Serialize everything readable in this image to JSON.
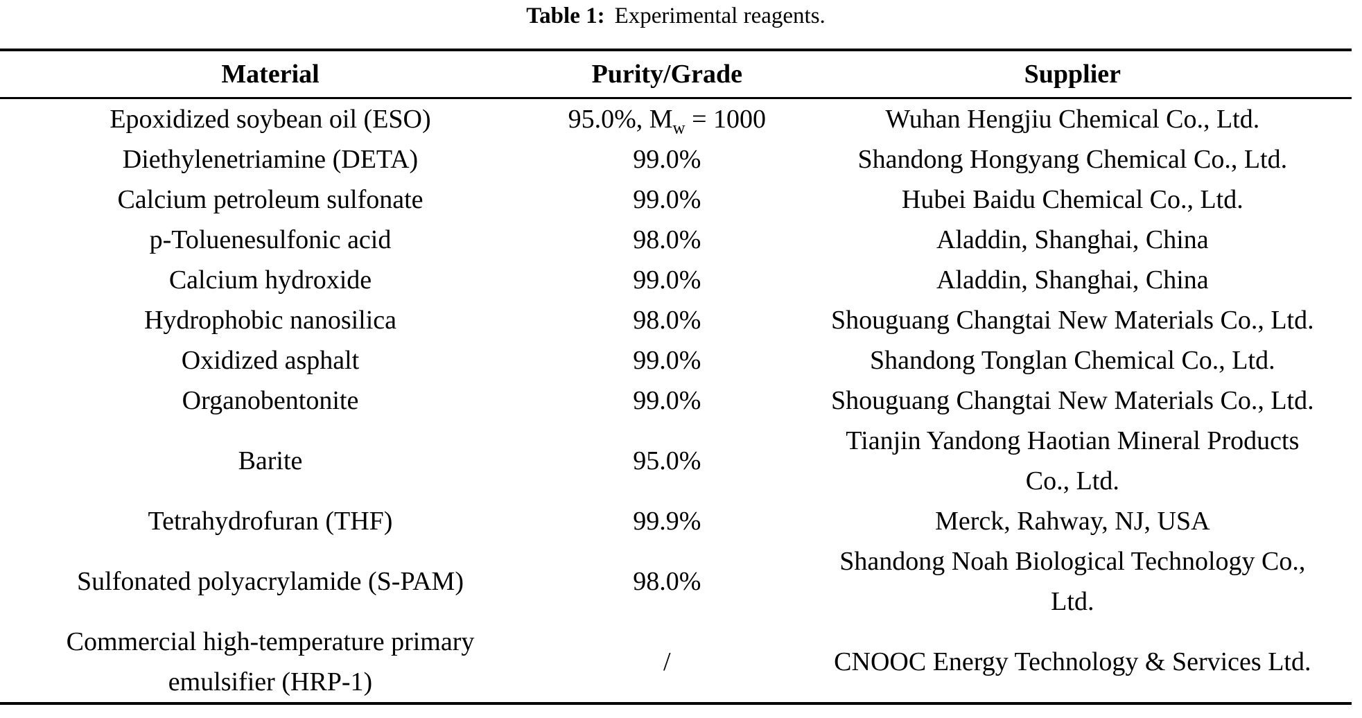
{
  "caption": {
    "label": "Table 1:",
    "text": "Experimental reagents."
  },
  "colors": {
    "text": "#000000",
    "rule": "#000000",
    "background": "#ffffff"
  },
  "table": {
    "columns": [
      "Material",
      "Purity/Grade",
      "Supplier"
    ],
    "rows": [
      {
        "material": "Epoxidized soybean oil (ESO)",
        "purity_parts": {
          "pre": "95.0%, M",
          "sub": "w",
          "post": " = 1000"
        },
        "supplier": "Wuhan Hengjiu Chemical Co., Ltd."
      },
      {
        "material": "Diethylenetriamine (DETA)",
        "purity": "99.0%",
        "supplier": "Shandong Hongyang Chemical Co., Ltd."
      },
      {
        "material": "Calcium petroleum sulfonate",
        "purity": "99.0%",
        "supplier": "Hubei Baidu Chemical Co., Ltd."
      },
      {
        "material": "p-Toluenesulfonic acid",
        "purity": "98.0%",
        "supplier": "Aladdin, Shanghai, China"
      },
      {
        "material": "Calcium hydroxide",
        "purity": "99.0%",
        "supplier": "Aladdin, Shanghai, China"
      },
      {
        "material": "Hydrophobic nanosilica",
        "purity": "98.0%",
        "supplier": "Shouguang Changtai New Materials Co., Ltd."
      },
      {
        "material": "Oxidized asphalt",
        "purity": "99.0%",
        "supplier": "Shandong Tonglan Chemical Co., Ltd."
      },
      {
        "material": "Organobentonite",
        "purity": "99.0%",
        "supplier": "Shouguang Changtai New Materials Co., Ltd."
      },
      {
        "material": "Barite",
        "purity": "95.0%",
        "supplier": "Tianjin Yandong Haotian Mineral Products\nCo., Ltd."
      },
      {
        "material": "Tetrahydrofuran (THF)",
        "purity": "99.9%",
        "supplier": "Merck, Rahway, NJ, USA"
      },
      {
        "material": "Sulfonated polyacrylamide (S-PAM)",
        "purity": "98.0%",
        "supplier": "Shandong Noah Biological Technology Co.,\nLtd."
      },
      {
        "material": "Commercial high-temperature primary\nemulsifier (HRP-1)",
        "purity": "/",
        "supplier": "CNOOC Energy Technology & Services Ltd."
      }
    ]
  }
}
